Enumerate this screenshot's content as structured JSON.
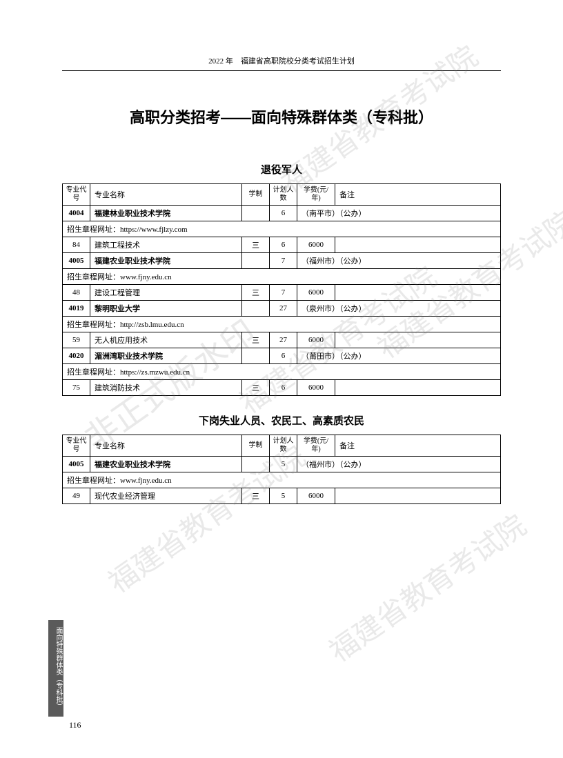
{
  "header": "2022 年　福建省高职院校分类考试招生计划",
  "main_title": "高职分类招考——面向特殊群体类（专科批）",
  "page_number": "116",
  "side_tab": "面向特殊群体类（专科批）",
  "watermarks": {
    "wm1": "福建省教育考试院",
    "wm2": "非正式版水印",
    "wm3": "福建省教育考试院",
    "wm4": "福建省教育考试院",
    "wm5": "福建省教育考试院",
    "wm6": "福建省教育考试院"
  },
  "columns": {
    "code": "专业代号",
    "name": "专业名称",
    "duration": "学制",
    "plan": "计划人数",
    "fee": "学费(元/年)",
    "note": "备注"
  },
  "sections": [
    {
      "title": "退役军人",
      "rows": [
        {
          "type": "school",
          "code": "4004",
          "name": "福建林业职业技术学院",
          "plan": "6",
          "note": "（南平市）（公办）"
        },
        {
          "type": "url",
          "text": "招生章程网址：https://www.fjlzy.com"
        },
        {
          "type": "major",
          "code": "84",
          "name": "建筑工程技术",
          "duration": "三",
          "plan": "6",
          "fee": "6000",
          "note": ""
        },
        {
          "type": "school",
          "code": "4005",
          "name": "福建农业职业技术学院",
          "plan": "7",
          "note": "（福州市）（公办）"
        },
        {
          "type": "url",
          "text": "招生章程网址：www.fjny.edu.cn"
        },
        {
          "type": "major",
          "code": "48",
          "name": "建设工程管理",
          "duration": "三",
          "plan": "7",
          "fee": "6000",
          "note": ""
        },
        {
          "type": "school",
          "code": "4019",
          "name": "黎明职业大学",
          "plan": "27",
          "note": "（泉州市）（公办）"
        },
        {
          "type": "url",
          "text": "招生章程网址：http://zsb.lmu.edu.cn"
        },
        {
          "type": "major",
          "code": "59",
          "name": "无人机应用技术",
          "duration": "三",
          "plan": "27",
          "fee": "6000",
          "note": ""
        },
        {
          "type": "school",
          "code": "4020",
          "name": "湄洲湾职业技术学院",
          "plan": "6",
          "note": "（莆田市）（公办）"
        },
        {
          "type": "url",
          "text": "招生章程网址：https://zs.mzwu.edu.cn"
        },
        {
          "type": "major",
          "code": "75",
          "name": "建筑消防技术",
          "duration": "三",
          "plan": "6",
          "fee": "6000",
          "note": ""
        }
      ]
    },
    {
      "title": "下岗失业人员、农民工、高素质农民",
      "rows": [
        {
          "type": "school",
          "code": "4005",
          "name": "福建农业职业技术学院",
          "plan": "5",
          "note": "（福州市）（公办）"
        },
        {
          "type": "url",
          "text": "招生章程网址：www.fjny.edu.cn"
        },
        {
          "type": "major",
          "code": "49",
          "name": "现代农业经济管理",
          "duration": "三",
          "plan": "5",
          "fee": "6000",
          "note": ""
        }
      ]
    }
  ]
}
